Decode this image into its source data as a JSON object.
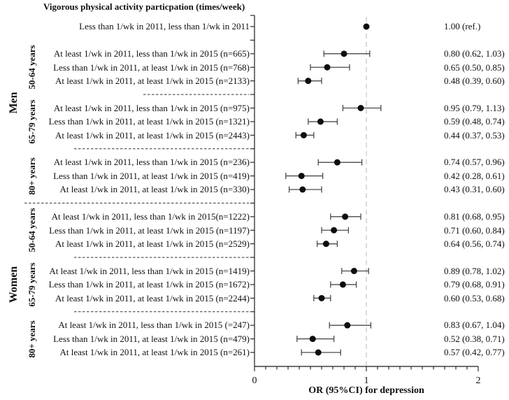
{
  "chart_data": {
    "type": "scatter",
    "subtype": "forest-plot",
    "title": "Vigorous physical activity particpation (times/week)",
    "xlabel": "OR (95%CI) for depression",
    "xlim": [
      0,
      2
    ],
    "xticks": [
      "0",
      "1",
      "2"
    ],
    "minor_tick_step": 0.1,
    "reference_line_x": 1,
    "legend": "none",
    "grid": "off",
    "colors": {
      "marker": "#0d0d0d",
      "error_bar": "#4a4a4a",
      "axis": "#1a1a1a",
      "reference_line": "#c8c8c8",
      "separator": "#333333",
      "text": "#111111"
    },
    "groups": [
      {
        "side": "",
        "age": "",
        "divider_before": "none",
        "rows": [
          {
            "label": "Less than 1/wk in 2011, less than 1/wk in 2011",
            "or": 1.0,
            "ci_low": null,
            "ci_high": null,
            "or_text": "1.00 (ref.)"
          }
        ]
      },
      {
        "side": "Men",
        "age": "50-64 years",
        "divider_before": "gap",
        "rows": [
          {
            "label": "At least 1/wk in 2011, less than 1/wk in 2015 (n=665)",
            "or": 0.8,
            "ci_low": 0.62,
            "ci_high": 1.03,
            "or_text": "0.80 (0.62, 1.03)"
          },
          {
            "label": "Less than 1/wk in 2011, at least 1/wk in 2015 (n=768)",
            "or": 0.65,
            "ci_low": 0.5,
            "ci_high": 0.85,
            "or_text": "0.65 (0.50, 0.85)"
          },
          {
            "label": "At least 1/wk in 2011, at least 1/wk in 2015 (n=2133)",
            "or": 0.48,
            "ci_low": 0.39,
            "ci_high": 0.6,
            "or_text": "0.48 (0.39, 0.60)"
          }
        ]
      },
      {
        "side": "Men",
        "age": "65-79 years",
        "divider_before": "short",
        "rows": [
          {
            "label": "At least 1/wk in 2011, less than 1/wk in 2015 (n=975)",
            "or": 0.95,
            "ci_low": 0.79,
            "ci_high": 1.13,
            "or_text": "0.95 (0.79, 1.13)"
          },
          {
            "label": "Less than 1/wk in 2011, at least 1/wk in 2015 (n=1321)",
            "or": 0.59,
            "ci_low": 0.48,
            "ci_high": 0.74,
            "or_text": "0.59 (0.48, 0.74)"
          },
          {
            "label": "At least 1/wk in 2011, at least 1/wk in 2015 (n=2443)",
            "or": 0.44,
            "ci_low": 0.37,
            "ci_high": 0.53,
            "or_text": "0.44 (0.37, 0.53)"
          }
        ]
      },
      {
        "side": "Men",
        "age": "80+ years",
        "divider_before": "long",
        "rows": [
          {
            "label": "At least 1/wk in 2011, less than 1/wk in 2015 (n=236)",
            "or": 0.74,
            "ci_low": 0.57,
            "ci_high": 0.96,
            "or_text": "0.74 (0.57, 0.96)"
          },
          {
            "label": "Less than 1/wk in 2011, at least 1/wk in 2015 (n=419)",
            "or": 0.42,
            "ci_low": 0.28,
            "ci_high": 0.61,
            "or_text": "0.42 (0.28, 0.61)"
          },
          {
            "label": "At least 1/wk in 2011, at least 1/wk in 2015 (n=330)",
            "or": 0.43,
            "ci_low": 0.31,
            "ci_high": 0.6,
            "or_text": "0.43 (0.31, 0.60)"
          }
        ]
      },
      {
        "side": "Women",
        "age": "50-64 years",
        "divider_before": "full",
        "rows": [
          {
            "label": "At least 1/wk in 2011, less than 1/wk in 2015(n=1222)",
            "or": 0.81,
            "ci_low": 0.68,
            "ci_high": 0.95,
            "or_text": "0.81 (0.68, 0.95)"
          },
          {
            "label": "Less than 1/wk in 2011, at least 1/wk in 2015 (n=1197)",
            "or": 0.71,
            "ci_low": 0.6,
            "ci_high": 0.84,
            "or_text": "0.71 (0.60, 0.84)"
          },
          {
            "label": "At least 1/wk in 2011, at least 1/wk in 2015 (n=2529)",
            "or": 0.64,
            "ci_low": 0.56,
            "ci_high": 0.74,
            "or_text": "0.64 (0.56, 0.74)"
          }
        ]
      },
      {
        "side": "Women",
        "age": "65-79 years",
        "divider_before": "long",
        "rows": [
          {
            "label": "At least 1/wk in 2011, less than 1/wk in 2015 (n=1419)",
            "or": 0.89,
            "ci_low": 0.78,
            "ci_high": 1.02,
            "or_text": "0.89 (0.78, 1.02)"
          },
          {
            "label": "Less than 1/wk in 2011, at least 1/wk in 2015 (n=1672)",
            "or": 0.79,
            "ci_low": 0.68,
            "ci_high": 0.91,
            "or_text": "0.79 (0.68, 0.91)"
          },
          {
            "label": "At least 1/wk in 2011, at least 1/wk in 2015 (n=2244)",
            "or": 0.6,
            "ci_low": 0.53,
            "ci_high": 0.68,
            "or_text": "0.60 (0.53, 0.68)"
          }
        ]
      },
      {
        "side": "Women",
        "age": "80+ years",
        "divider_before": "long",
        "rows": [
          {
            "label": "At least 1/wk in 2011, less than 1/wk in 2015 (=247)",
            "or": 0.83,
            "ci_low": 0.67,
            "ci_high": 1.04,
            "or_text": "0.83 (0.67, 1.04)"
          },
          {
            "label": "Less than 1/wk in 2011, at least 1/wk in 2015 (n=479)",
            "or": 0.52,
            "ci_low": 0.38,
            "ci_high": 0.71,
            "or_text": "0.52 (0.38, 0.71)"
          },
          {
            "label": "At least 1/wk in 2011, at least 1/wk in 2015 (n=261)",
            "or": 0.57,
            "ci_low": 0.42,
            "ci_high": 0.77,
            "or_text": "0.57 (0.42, 0.77)"
          }
        ]
      }
    ]
  }
}
